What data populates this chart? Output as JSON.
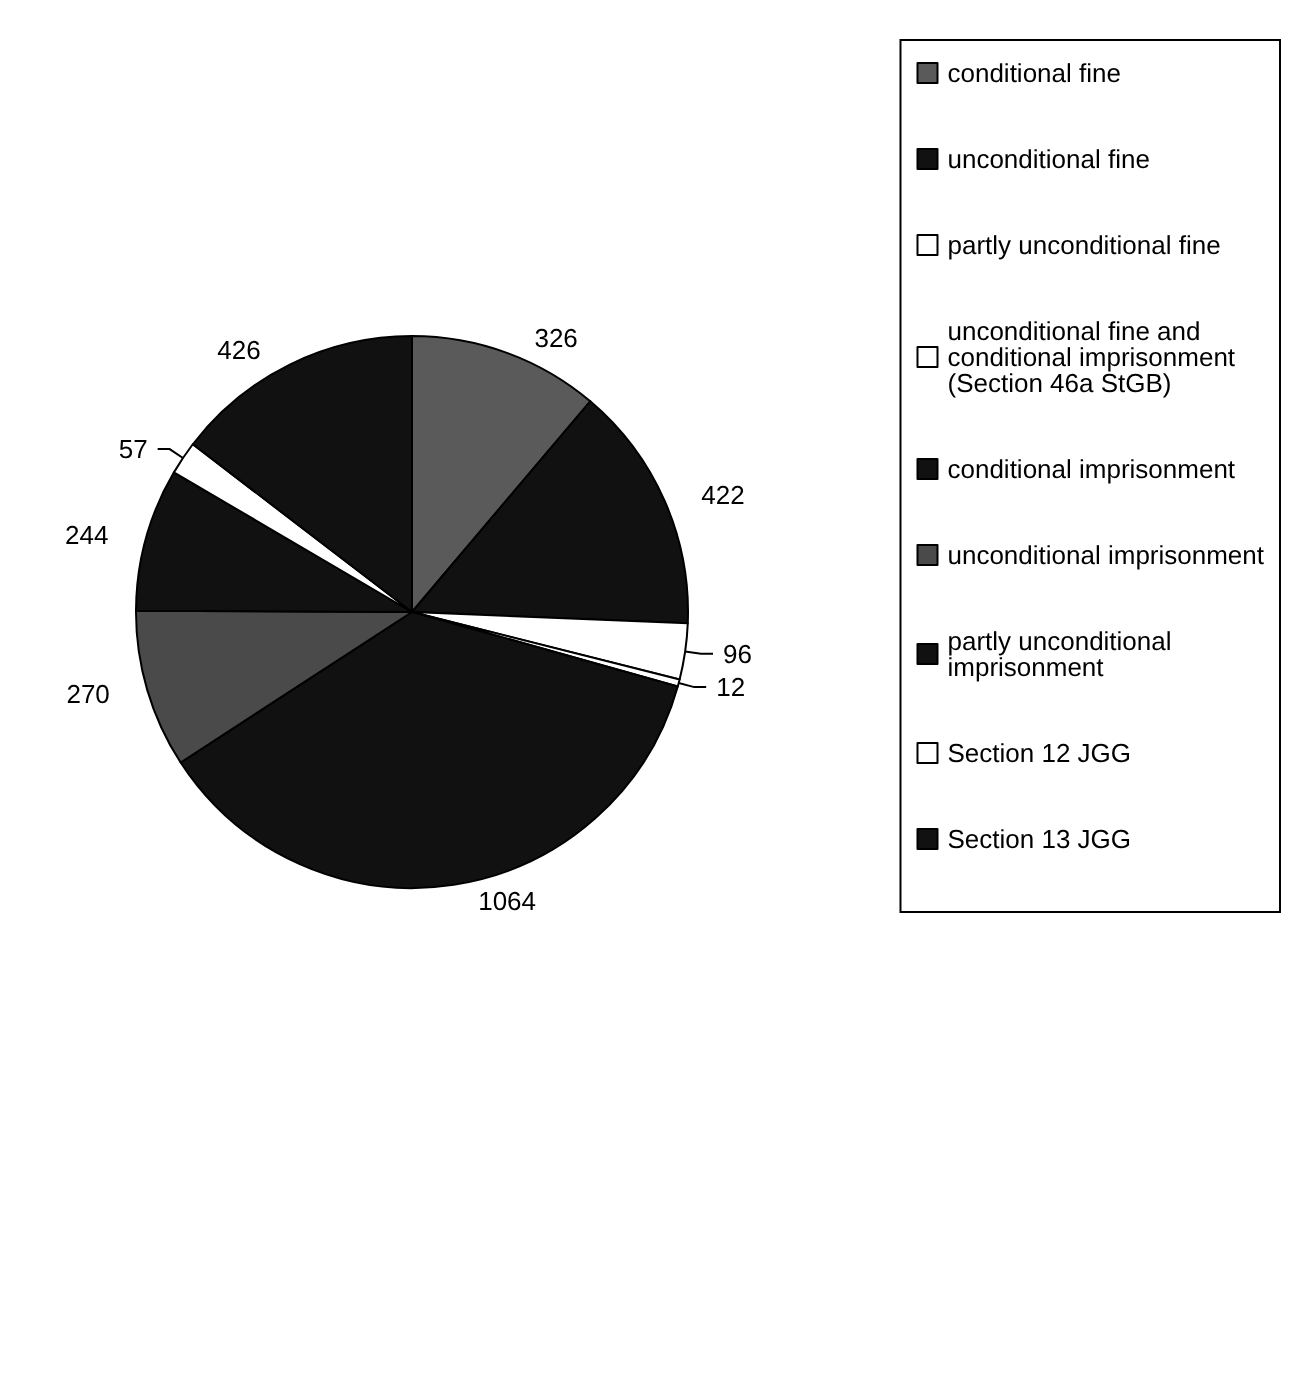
{
  "chart_data": {
    "type": "pie",
    "categories": [
      "conditional fine",
      "unconditional fine",
      "partly unconditional fine",
      "unconditional fine and conditional imprisonment (Section 46a StGB)",
      "conditional imprisonment",
      "unconditional imprisonment",
      "partly unconditional imprisonment",
      "Section 12 JGG",
      "Section 13 JGG"
    ],
    "values": [
      326,
      422,
      96,
      12,
      1064,
      270,
      244,
      57,
      426
    ],
    "colors": [
      "#5a5a5a",
      "#111111",
      "#ffffff",
      "#ffffff",
      "#111111",
      "#4a4a4a",
      "#111111",
      "#ffffff",
      "#111111"
    ],
    "data_labels": true,
    "legend": "right"
  }
}
